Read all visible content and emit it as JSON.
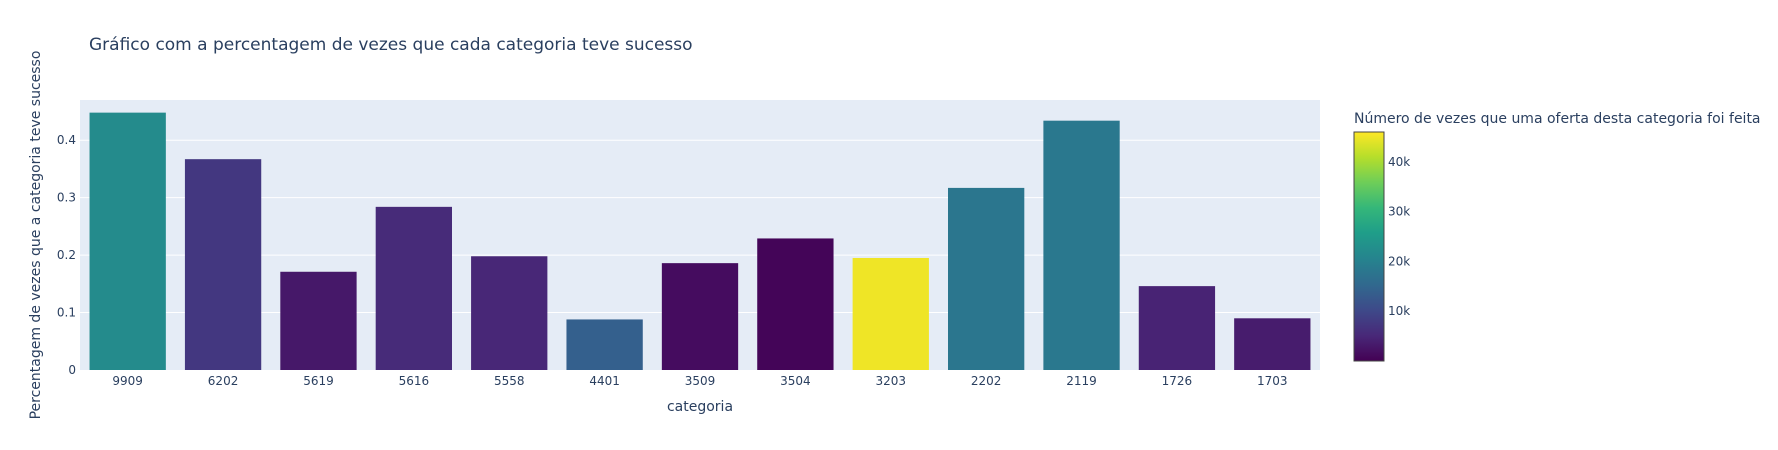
{
  "chart_data": {
    "type": "bar",
    "title": "Gráfico com a percentagem de vezes que cada categoria teve sucesso",
    "xlabel": "categoria",
    "ylabel": "Percentagem de vezes que a categoria teve sucesso",
    "categories": [
      "9909",
      "6202",
      "5619",
      "5616",
      "5558",
      "4401",
      "3509",
      "3504",
      "3203",
      "2202",
      "2119",
      "1726",
      "1703"
    ],
    "values": [
      0.448,
      0.367,
      0.171,
      0.284,
      0.198,
      0.088,
      0.186,
      0.229,
      0.195,
      0.317,
      0.434,
      0.146,
      0.09
    ],
    "color_values": [
      22000,
      7500,
      3000,
      5500,
      5000,
      14000,
      1500,
      500,
      45000,
      18000,
      18500,
      4500,
      3500
    ],
    "ylim": [
      0,
      0.47
    ],
    "yticks": [
      0,
      0.1,
      0.2,
      0.3,
      0.4
    ],
    "ytick_labels": [
      "0",
      "0.1",
      "0.2",
      "0.3",
      "0.4"
    ],
    "grid": true,
    "colorbar": {
      "title": "Número de vezes que uma oferta desta categoria foi feita",
      "colorscale": "viridis",
      "range": [
        0,
        46000
      ],
      "ticks": [
        10000,
        20000,
        30000,
        40000
      ],
      "tick_labels": [
        "10k",
        "20k",
        "30k",
        "40k"
      ],
      "placement": "right"
    },
    "colors": {
      "plot_bg": "#e5ecf6",
      "grid": "#ffffff",
      "text": "#2a3f5f"
    }
  }
}
